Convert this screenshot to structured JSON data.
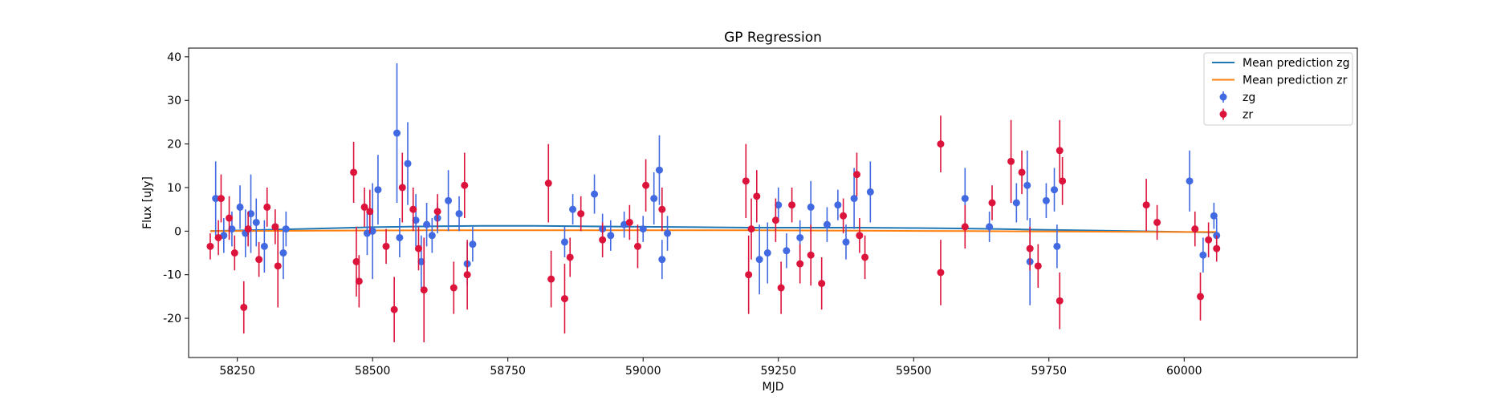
{
  "chart_data": {
    "type": "scatter",
    "title": "GP Regression",
    "xlabel": "MJD",
    "ylabel": "Flux [uJy]",
    "xlim": [
      58160,
      60320
    ],
    "ylim": [
      -29,
      42
    ],
    "xticks": [
      58250,
      58500,
      58750,
      59000,
      59250,
      59500,
      59750,
      60000
    ],
    "yticks": [
      -20,
      -10,
      0,
      10,
      20,
      30,
      40
    ],
    "grid": false,
    "legend_position": "top-right",
    "series": [
      {
        "name": "Mean prediction zg",
        "kind": "line",
        "color": "#1f77b4",
        "x": [
          58200,
          58300,
          58400,
          58500,
          58600,
          58700,
          58800,
          58900,
          59000,
          59100,
          59200,
          59300,
          59400,
          59500,
          59600,
          59700,
          59800,
          59900,
          60000,
          60060
        ],
        "y": [
          0.0,
          0.3,
          0.6,
          0.9,
          1.1,
          1.2,
          1.2,
          1.1,
          1.0,
          0.9,
          0.8,
          0.8,
          0.8,
          0.7,
          0.6,
          0.4,
          0.2,
          0.0,
          -0.2,
          -0.3
        ]
      },
      {
        "name": "Mean prediction zr",
        "kind": "line",
        "color": "#ff7f0e",
        "x": [
          58200,
          58400,
          58600,
          58800,
          59000,
          59200,
          59400,
          59600,
          59800,
          60000,
          60060
        ],
        "y": [
          0.0,
          0.1,
          0.2,
          0.2,
          0.2,
          0.2,
          0.1,
          0.0,
          -0.1,
          -0.2,
          -0.2
        ]
      },
      {
        "name": "zg",
        "kind": "errorbar",
        "color": "#4169e1",
        "points": [
          [
            58210,
            7.5,
            8.5
          ],
          [
            58225,
            -1.0,
            4.0
          ],
          [
            58240,
            0.5,
            4.0
          ],
          [
            58255,
            5.5,
            5.0
          ],
          [
            58265,
            -0.5,
            5.5
          ],
          [
            58275,
            4.0,
            9.0
          ],
          [
            58285,
            2.0,
            5.5
          ],
          [
            58300,
            -3.5,
            6.0
          ],
          [
            58335,
            -5.0,
            6.0
          ],
          [
            58340,
            0.5,
            4.0
          ],
          [
            58490,
            -0.5,
            5.0
          ],
          [
            58500,
            0.0,
            11.0
          ],
          [
            58510,
            9.5,
            8.0
          ],
          [
            58545,
            22.5,
            16.0
          ],
          [
            58550,
            -1.5,
            4.5
          ],
          [
            58565,
            15.5,
            9.5
          ],
          [
            58580,
            2.5,
            6.0
          ],
          [
            58590,
            -7.0,
            6.0
          ],
          [
            58600,
            1.5,
            5.0
          ],
          [
            58610,
            -1.0,
            4.0
          ],
          [
            58620,
            3.0,
            3.5
          ],
          [
            58640,
            7.0,
            7.0
          ],
          [
            58660,
            4.0,
            4.0
          ],
          [
            58675,
            -7.5,
            5.0
          ],
          [
            58685,
            -3.0,
            4.0
          ],
          [
            58855,
            -2.5,
            3.5
          ],
          [
            58870,
            5.0,
            3.5
          ],
          [
            58910,
            8.5,
            4.5
          ],
          [
            58925,
            0.5,
            3.5
          ],
          [
            58940,
            -1.0,
            3.5
          ],
          [
            58965,
            1.5,
            3.0
          ],
          [
            59000,
            0.5,
            3.0
          ],
          [
            59020,
            7.5,
            6.0
          ],
          [
            59030,
            14.0,
            8.0
          ],
          [
            59035,
            -6.5,
            4.5
          ],
          [
            59045,
            -0.5,
            4.0
          ],
          [
            59215,
            -6.5,
            8.0
          ],
          [
            59230,
            -5.0,
            7.0
          ],
          [
            59250,
            6.0,
            4.0
          ],
          [
            59265,
            -4.5,
            4.0
          ],
          [
            59290,
            -1.5,
            4.0
          ],
          [
            59310,
            5.5,
            6.0
          ],
          [
            59340,
            1.5,
            4.0
          ],
          [
            59360,
            6.0,
            3.5
          ],
          [
            59375,
            -2.5,
            4.0
          ],
          [
            59390,
            7.5,
            7.0
          ],
          [
            59420,
            9.0,
            7.0
          ],
          [
            59595,
            7.5,
            7.0
          ],
          [
            59640,
            1.0,
            3.5
          ],
          [
            59690,
            6.5,
            4.5
          ],
          [
            59710,
            10.5,
            8.0
          ],
          [
            59715,
            -7.0,
            10.0
          ],
          [
            59745,
            7.0,
            4.0
          ],
          [
            59760,
            9.5,
            5.0
          ],
          [
            59765,
            -3.5,
            5.0
          ],
          [
            60010,
            11.5,
            7.0
          ],
          [
            60035,
            -5.5,
            4.0
          ],
          [
            60055,
            3.5,
            3.0
          ],
          [
            60060,
            -1.0,
            4.0
          ]
        ]
      },
      {
        "name": "zr",
        "kind": "errorbar",
        "color": "#dc143c",
        "points": [
          [
            58200,
            -3.5,
            3.0
          ],
          [
            58215,
            -1.5,
            4.0
          ],
          [
            58220,
            7.5,
            5.5
          ],
          [
            58235,
            3.0,
            5.0
          ],
          [
            58245,
            -5.0,
            4.0
          ],
          [
            58262,
            -17.5,
            6.0
          ],
          [
            58270,
            0.5,
            4.0
          ],
          [
            58290,
            -6.5,
            4.0
          ],
          [
            58305,
            5.5,
            4.5
          ],
          [
            58320,
            1.0,
            4.0
          ],
          [
            58325,
            -8.0,
            9.5
          ],
          [
            58465,
            13.5,
            7.0
          ],
          [
            58470,
            -7.0,
            8.0
          ],
          [
            58475,
            -11.5,
            6.0
          ],
          [
            58485,
            5.5,
            4.5
          ],
          [
            58495,
            4.5,
            5.0
          ],
          [
            58525,
            -3.5,
            4.0
          ],
          [
            58540,
            -18.0,
            7.5
          ],
          [
            58555,
            10.0,
            8.0
          ],
          [
            58575,
            5.0,
            5.0
          ],
          [
            58585,
            -4.0,
            5.0
          ],
          [
            58595,
            -13.5,
            12.0
          ],
          [
            58620,
            4.5,
            4.0
          ],
          [
            58650,
            -13.0,
            6.0
          ],
          [
            58670,
            10.5,
            7.5
          ],
          [
            58675,
            -10.0,
            8.0
          ],
          [
            58825,
            11.0,
            9.0
          ],
          [
            58830,
            -11.0,
            6.5
          ],
          [
            58855,
            -15.5,
            8.0
          ],
          [
            58865,
            -6.0,
            4.5
          ],
          [
            58885,
            4.0,
            4.0
          ],
          [
            58925,
            -2.0,
            4.0
          ],
          [
            58975,
            2.0,
            4.0
          ],
          [
            58990,
            -3.5,
            5.0
          ],
          [
            59005,
            10.5,
            6.0
          ],
          [
            59035,
            5.0,
            5.0
          ],
          [
            59190,
            11.5,
            8.5
          ],
          [
            59195,
            -10.0,
            9.0
          ],
          [
            59200,
            0.5,
            7.0
          ],
          [
            59210,
            8.0,
            6.0
          ],
          [
            59245,
            2.5,
            5.0
          ],
          [
            59255,
            -13.0,
            6.0
          ],
          [
            59275,
            6.0,
            4.0
          ],
          [
            59290,
            -7.5,
            4.5
          ],
          [
            59310,
            -5.5,
            7.0
          ],
          [
            59330,
            -12.0,
            6.0
          ],
          [
            59370,
            3.5,
            4.0
          ],
          [
            59395,
            13.0,
            5.0
          ],
          [
            59400,
            -1.0,
            4.0
          ],
          [
            59410,
            -6.0,
            5.0
          ],
          [
            59550,
            20.0,
            6.5
          ],
          [
            59550,
            -9.5,
            7.5
          ],
          [
            59595,
            1.0,
            5.0
          ],
          [
            59645,
            6.5,
            4.0
          ],
          [
            59680,
            16.0,
            9.5
          ],
          [
            59700,
            13.5,
            5.0
          ],
          [
            59715,
            -4.0,
            5.0
          ],
          [
            59730,
            -8.0,
            5.0
          ],
          [
            59770,
            18.5,
            7.0
          ],
          [
            59770,
            -16.0,
            6.5
          ],
          [
            59775,
            11.5,
            5.5
          ],
          [
            59930,
            6.0,
            6.0
          ],
          [
            59950,
            2.0,
            4.0
          ],
          [
            60020,
            0.5,
            4.0
          ],
          [
            60030,
            -15.0,
            5.5
          ],
          [
            60045,
            -2.0,
            4.0
          ],
          [
            60060,
            -4.0,
            3.0
          ]
        ]
      }
    ]
  }
}
